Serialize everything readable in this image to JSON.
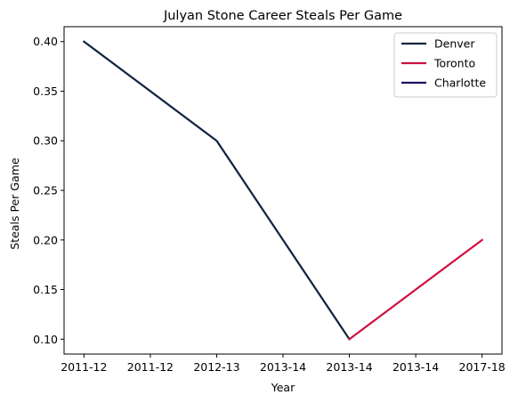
{
  "chart_data": {
    "type": "line",
    "title": "Julyan Stone Career Steals Per Game",
    "xlabel": "Year",
    "ylabel": "Steals Per Game",
    "x_tick_labels": [
      "2011-12",
      "2011-12",
      "2012-13",
      "2013-14",
      "2013-14",
      "2013-14",
      "2017-18"
    ],
    "xlim": [
      -0.3,
      6.3
    ],
    "ylim": [
      0.085,
      0.415
    ],
    "y_ticks": [
      0.1,
      0.15,
      0.2,
      0.25,
      0.3,
      0.35,
      0.4
    ],
    "y_tick_labels": [
      "0.10",
      "0.15",
      "0.20",
      "0.25",
      "0.30",
      "0.35",
      "0.40"
    ],
    "grid": false,
    "legend_position": "top-right",
    "series": [
      {
        "name": "Denver",
        "color": "#0E2240",
        "x": [
          0,
          2,
          4
        ],
        "y": [
          0.4,
          0.3,
          0.1
        ]
      },
      {
        "name": "Toronto",
        "color": "#CE1141",
        "x": [
          4,
          6
        ],
        "y": [
          0.1,
          0.2
        ]
      },
      {
        "name": "Charlotte",
        "color": "#1D1160",
        "x": [],
        "y": []
      }
    ]
  }
}
